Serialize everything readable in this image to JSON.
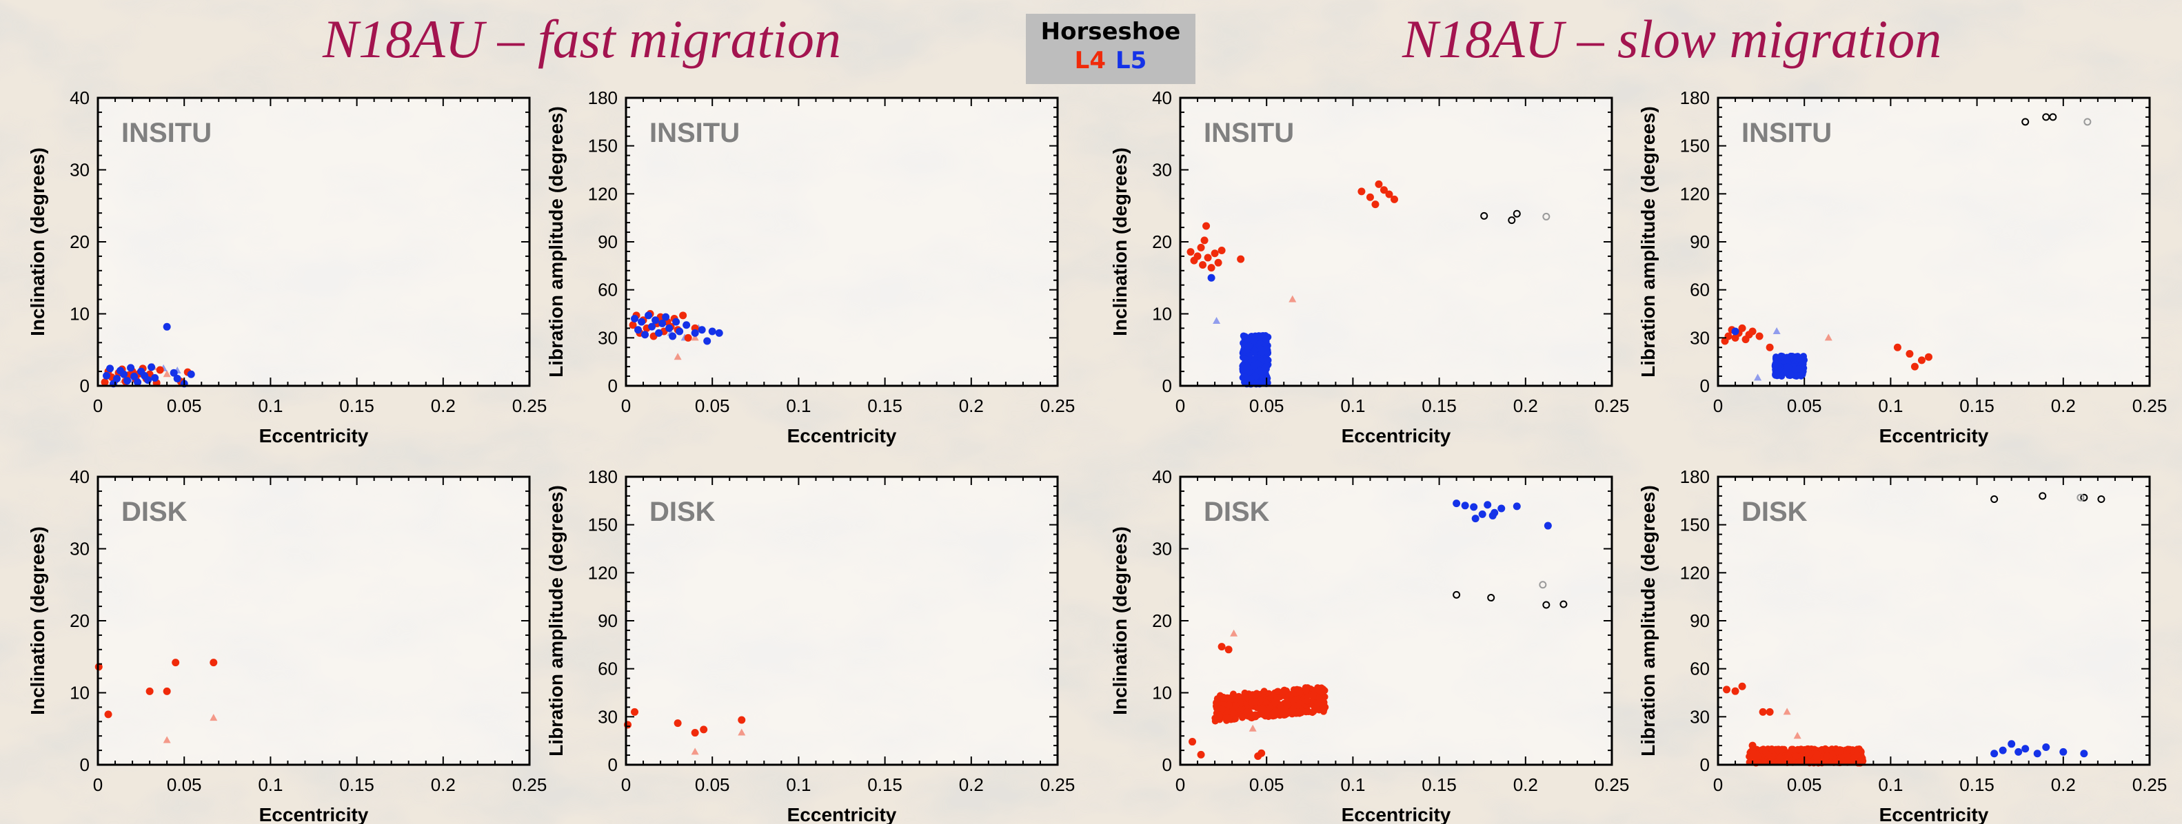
{
  "header": {
    "title_fast": "N18AU – fast migration",
    "title_slow": "N18AU – slow migration",
    "legend": {
      "title": "Horseshoe",
      "l4": "L4",
      "l5": "L5"
    }
  },
  "colors": {
    "title": "#a3144f",
    "l4": "#f02a0a",
    "l5": "#1432e8",
    "horseshoe": "#000000",
    "legend_bg": "#bdbdbd",
    "panel_label": "#808080"
  },
  "chart_data": [
    {
      "id": "fast-insitu-inc",
      "type": "scatter",
      "label": "INSITU",
      "xlabel": "Eccentricity",
      "ylabel": "Inclination (degrees)",
      "xlim": [
        0,
        0.25
      ],
      "ylim": [
        0,
        40
      ],
      "xticks": [
        "0",
        "0.05",
        "0.1",
        "0.15",
        "0.2",
        "0.25"
      ],
      "yticks": [
        "0",
        "10",
        "20",
        "30",
        "40"
      ],
      "points": {
        "l4": [
          [
            0.004,
            0.5
          ],
          [
            0.006,
            2.0
          ],
          [
            0.008,
            1.2
          ],
          [
            0.01,
            0.8
          ],
          [
            0.012,
            1.8
          ],
          [
            0.014,
            2.3
          ],
          [
            0.016,
            0.6
          ],
          [
            0.018,
            1.5
          ],
          [
            0.02,
            2.0
          ],
          [
            0.022,
            0.9
          ],
          [
            0.024,
            1.7
          ],
          [
            0.026,
            2.4
          ],
          [
            0.028,
            1.0
          ],
          [
            0.03,
            1.6
          ],
          [
            0.034,
            0.4
          ],
          [
            0.036,
            2.2
          ],
          [
            0.048,
            0.6
          ],
          [
            0.052,
            1.9
          ]
        ],
        "l5": [
          [
            0.005,
            1.4
          ],
          [
            0.007,
            2.4
          ],
          [
            0.009,
            0.3
          ],
          [
            0.011,
            1.0
          ],
          [
            0.013,
            2.1
          ],
          [
            0.015,
            1.6
          ],
          [
            0.017,
            0.7
          ],
          [
            0.019,
            2.5
          ],
          [
            0.021,
            1.3
          ],
          [
            0.023,
            0.5
          ],
          [
            0.025,
            2.0
          ],
          [
            0.027,
            1.4
          ],
          [
            0.029,
            0.8
          ],
          [
            0.031,
            2.6
          ],
          [
            0.033,
            1.1
          ],
          [
            0.04,
            8.2
          ],
          [
            0.044,
            1.8
          ],
          [
            0.046,
            1.0
          ],
          [
            0.05,
            0.3
          ],
          [
            0.054,
            1.6
          ]
        ],
        "l4_tri": [
          [
            0.015,
            0.8
          ],
          [
            0.032,
            2.6
          ],
          [
            0.04,
            1.6
          ]
        ],
        "l5_tri": [
          [
            0.02,
            0.9
          ],
          [
            0.038,
            2.4
          ],
          [
            0.046,
            2.1
          ]
        ],
        "hs": [],
        "hs_grey": []
      }
    },
    {
      "id": "fast-insitu-lib",
      "type": "scatter",
      "label": "INSITU",
      "xlabel": "Eccentricity",
      "ylabel": "Libration amplitude (degrees)",
      "xlim": [
        0,
        0.25
      ],
      "ylim": [
        0,
        180
      ],
      "xticks": [
        "0",
        "0.05",
        "0.1",
        "0.15",
        "0.2",
        "0.25"
      ],
      "yticks": [
        "0",
        "30",
        "60",
        "90",
        "120",
        "150",
        "180"
      ],
      "points": {
        "l4": [
          [
            0.004,
            38
          ],
          [
            0.006,
            44
          ],
          [
            0.008,
            33
          ],
          [
            0.01,
            41
          ],
          [
            0.012,
            36
          ],
          [
            0.014,
            45
          ],
          [
            0.016,
            31
          ],
          [
            0.018,
            39
          ],
          [
            0.02,
            43
          ],
          [
            0.022,
            34
          ],
          [
            0.024,
            40
          ],
          [
            0.026,
            37
          ],
          [
            0.028,
            42
          ],
          [
            0.03,
            35
          ],
          [
            0.033,
            44
          ],
          [
            0.036,
            30
          ],
          [
            0.04,
            36
          ]
        ],
        "l5": [
          [
            0.005,
            42
          ],
          [
            0.007,
            35
          ],
          [
            0.009,
            40
          ],
          [
            0.011,
            32
          ],
          [
            0.013,
            44
          ],
          [
            0.015,
            37
          ],
          [
            0.017,
            41
          ],
          [
            0.019,
            33
          ],
          [
            0.021,
            39
          ],
          [
            0.023,
            43
          ],
          [
            0.025,
            36
          ],
          [
            0.027,
            31
          ],
          [
            0.029,
            40
          ],
          [
            0.031,
            34
          ],
          [
            0.035,
            38
          ],
          [
            0.04,
            33
          ],
          [
            0.044,
            35
          ],
          [
            0.047,
            28
          ],
          [
            0.05,
            34
          ],
          [
            0.054,
            33
          ]
        ],
        "l4_tri": [
          [
            0.03,
            18
          ],
          [
            0.04,
            30
          ]
        ],
        "l5_tri": [
          [
            0.026,
            33
          ],
          [
            0.034,
            30
          ],
          [
            0.042,
            36
          ]
        ],
        "hs": [],
        "hs_grey": []
      }
    },
    {
      "id": "slow-insitu-inc",
      "type": "scatter",
      "label": "INSITU",
      "xlabel": "Eccentricity",
      "ylabel": "Inclination (degrees)",
      "xlim": [
        0,
        0.25
      ],
      "ylim": [
        0,
        40
      ],
      "xticks": [
        "0",
        "0.05",
        "0.1",
        "0.15",
        "0.2",
        "0.25"
      ],
      "yticks": [
        "0",
        "10",
        "20",
        "30",
        "40"
      ],
      "points": {
        "l4": [
          [
            0.006,
            18.6
          ],
          [
            0.008,
            17.4
          ],
          [
            0.01,
            18.0
          ],
          [
            0.012,
            19.2
          ],
          [
            0.013,
            16.8
          ],
          [
            0.014,
            20.2
          ],
          [
            0.015,
            22.2
          ],
          [
            0.016,
            17.8
          ],
          [
            0.018,
            16.4
          ],
          [
            0.02,
            18.4
          ],
          [
            0.022,
            17.1
          ],
          [
            0.024,
            18.8
          ],
          [
            0.035,
            17.6
          ],
          [
            0.105,
            27.0
          ],
          [
            0.11,
            26.2
          ],
          [
            0.113,
            25.2
          ],
          [
            0.115,
            28.0
          ],
          [
            0.118,
            27.2
          ],
          [
            0.121,
            26.6
          ],
          [
            0.124,
            25.9
          ]
        ],
        "l5": [
          [
            0.018,
            15.0
          ]
        ],
        "l5_cluster": {
          "x": [
            0.036,
            0.051
          ],
          "y": [
            0.2,
            7.0
          ],
          "n": 320
        },
        "l4_tri": [
          [
            0.065,
            12.0
          ]
        ],
        "l5_tri": [
          [
            0.021,
            9.0
          ]
        ],
        "hs": [
          [
            0.176,
            23.6
          ],
          [
            0.192,
            23.0
          ],
          [
            0.195,
            23.9
          ]
        ],
        "hs_grey": [
          [
            0.212,
            23.5
          ]
        ]
      }
    },
    {
      "id": "slow-insitu-lib",
      "type": "scatter",
      "label": "INSITU",
      "xlabel": "Eccentricity",
      "ylabel": "Libration amplitude (degrees)",
      "xlim": [
        0,
        0.25
      ],
      "ylim": [
        0,
        180
      ],
      "xticks": [
        "0",
        "0.05",
        "0.1",
        "0.15",
        "0.2",
        "0.25"
      ],
      "yticks": [
        "0",
        "30",
        "60",
        "90",
        "120",
        "150",
        "180"
      ],
      "points": {
        "l4": [
          [
            0.004,
            28
          ],
          [
            0.006,
            31
          ],
          [
            0.008,
            35
          ],
          [
            0.01,
            30
          ],
          [
            0.012,
            33
          ],
          [
            0.014,
            36
          ],
          [
            0.016,
            29
          ],
          [
            0.018,
            32
          ],
          [
            0.02,
            34
          ],
          [
            0.024,
            31
          ],
          [
            0.03,
            24
          ],
          [
            0.104,
            24
          ],
          [
            0.111,
            20
          ],
          [
            0.114,
            12
          ],
          [
            0.118,
            16
          ],
          [
            0.122,
            18
          ]
        ],
        "l5": [
          [
            0.01,
            34
          ]
        ],
        "l5_cluster": {
          "x": [
            0.033,
            0.05
          ],
          "y": [
            6,
            19
          ],
          "n": 260
        },
        "l4_tri": [
          [
            0.064,
            30
          ]
        ],
        "l5_tri": [
          [
            0.023,
            5
          ],
          [
            0.034,
            34
          ]
        ],
        "hs": [
          [
            0.178,
            165
          ],
          [
            0.19,
            168
          ],
          [
            0.194,
            168
          ]
        ],
        "hs_grey": [
          [
            0.214,
            165
          ]
        ]
      }
    },
    {
      "id": "fast-disk-inc",
      "type": "scatter",
      "label": "DISK",
      "xlabel": "Eccentricity",
      "ylabel": "Inclination (degrees)",
      "xlim": [
        0,
        0.25
      ],
      "ylim": [
        0,
        40
      ],
      "xticks": [
        "0",
        "0.05",
        "0.1",
        "0.15",
        "0.2",
        "0.25"
      ],
      "yticks": [
        "0",
        "10",
        "20",
        "30",
        "40"
      ],
      "points": {
        "l4": [
          [
            0.0005,
            13.6
          ],
          [
            0.006,
            7.0
          ],
          [
            0.03,
            10.2
          ],
          [
            0.04,
            10.2
          ],
          [
            0.045,
            14.2
          ],
          [
            0.067,
            14.2
          ]
        ],
        "l5": [],
        "l4_tri": [
          [
            0.04,
            3.4
          ],
          [
            0.067,
            6.5
          ]
        ],
        "l5_tri": [],
        "hs": [],
        "hs_grey": []
      }
    },
    {
      "id": "fast-disk-lib",
      "type": "scatter",
      "label": "DISK",
      "xlabel": "Eccentricity",
      "ylabel": "Libration amplitude (degrees)",
      "xlim": [
        0,
        0.25
      ],
      "ylim": [
        0,
        180
      ],
      "xticks": [
        "0",
        "0.05",
        "0.1",
        "0.15",
        "0.2",
        "0.25"
      ],
      "yticks": [
        "0",
        "30",
        "60",
        "90",
        "120",
        "150",
        "180"
      ],
      "points": {
        "l4": [
          [
            0.001,
            25
          ],
          [
            0.005,
            33
          ],
          [
            0.03,
            26
          ],
          [
            0.04,
            20
          ],
          [
            0.045,
            22
          ],
          [
            0.067,
            28
          ]
        ],
        "l5": [],
        "l4_tri": [
          [
            0.04,
            8
          ],
          [
            0.067,
            20
          ]
        ],
        "l5_tri": [],
        "hs": [],
        "hs_grey": []
      }
    },
    {
      "id": "slow-disk-inc",
      "type": "scatter",
      "label": "DISK",
      "xlabel": "Eccentricity",
      "ylabel": "Inclination (degrees)",
      "xlim": [
        0,
        0.25
      ],
      "ylim": [
        0,
        40
      ],
      "xticks": [
        "0",
        "0.05",
        "0.1",
        "0.15",
        "0.2",
        "0.25"
      ],
      "yticks": [
        "0",
        "10",
        "20",
        "30",
        "40"
      ],
      "points": {
        "l4": [
          [
            0.007,
            3.2
          ],
          [
            0.012,
            1.4
          ],
          [
            0.021,
            8.6
          ],
          [
            0.024,
            16.4
          ],
          [
            0.028,
            16.0
          ],
          [
            0.045,
            1.2
          ],
          [
            0.047,
            1.6
          ]
        ],
        "l4_cluster": {
          "x": [
            0.02,
            0.084
          ],
          "y": [
            6.0,
            9.6
          ],
          "n": 420,
          "tilt": 1.4
        },
        "l5": [
          [
            0.16,
            36.3
          ],
          [
            0.165,
            36.0
          ],
          [
            0.17,
            35.8
          ],
          [
            0.175,
            34.8
          ],
          [
            0.178,
            36.1
          ],
          [
            0.182,
            35.0
          ],
          [
            0.186,
            35.6
          ],
          [
            0.195,
            35.9
          ],
          [
            0.213,
            33.2
          ],
          [
            0.171,
            34.2
          ],
          [
            0.181,
            34.6
          ]
        ],
        "l4_tri": [
          [
            0.031,
            18.2
          ],
          [
            0.042,
            5.0
          ]
        ],
        "l5_tri": [],
        "hs": [
          [
            0.16,
            23.6
          ],
          [
            0.18,
            23.2
          ],
          [
            0.212,
            22.2
          ],
          [
            0.222,
            22.3
          ]
        ],
        "hs_grey": [
          [
            0.21,
            25.0
          ]
        ]
      }
    },
    {
      "id": "slow-disk-lib",
      "type": "scatter",
      "label": "DISK",
      "xlabel": "Eccentricity",
      "ylabel": "Libration amplitude (degrees)",
      "xlim": [
        0,
        0.25
      ],
      "ylim": [
        0,
        180
      ],
      "xticks": [
        "0",
        "0.05",
        "0.1",
        "0.15",
        "0.2",
        "0.25"
      ],
      "yticks": [
        "0",
        "30",
        "60",
        "90",
        "120",
        "150",
        "180"
      ],
      "points": {
        "l4": [
          [
            0.005,
            47
          ],
          [
            0.01,
            46
          ],
          [
            0.014,
            49
          ],
          [
            0.02,
            12
          ],
          [
            0.026,
            33
          ],
          [
            0.03,
            33
          ]
        ],
        "l4_cluster": {
          "x": [
            0.018,
            0.084
          ],
          "y": [
            1,
            10
          ],
          "n": 420,
          "tilt": 0
        },
        "l5": [
          [
            0.16,
            7
          ],
          [
            0.165,
            9
          ],
          [
            0.17,
            13
          ],
          [
            0.174,
            8
          ],
          [
            0.178,
            10
          ],
          [
            0.185,
            7
          ],
          [
            0.19,
            11
          ],
          [
            0.2,
            8
          ],
          [
            0.212,
            7
          ]
        ],
        "l4_tri": [
          [
            0.04,
            33
          ],
          [
            0.046,
            18
          ]
        ],
        "l5_tri": [],
        "hs": [
          [
            0.16,
            166
          ],
          [
            0.188,
            168
          ],
          [
            0.212,
            167
          ],
          [
            0.222,
            166
          ]
        ],
        "hs_grey": [
          [
            0.21,
            167
          ]
        ]
      }
    }
  ]
}
